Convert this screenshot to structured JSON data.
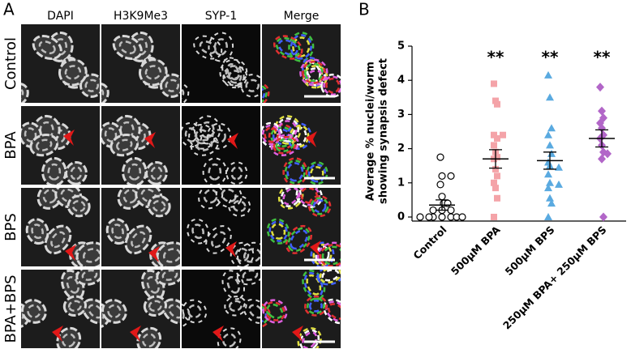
{
  "panel_a": {
    "label": "A",
    "columns": [
      "DAPI",
      "H3K9Me3",
      "SYP-1",
      "Merge"
    ],
    "rows": [
      "Control",
      "BPA",
      "BPS",
      "BPA+BPS"
    ]
  },
  "chart_data": {
    "type": "scatter",
    "label": "B",
    "ylabel_lines": [
      "Average % nuclei/worm",
      "showing synapsis defect"
    ],
    "categories": [
      "Control",
      "500µM BPA",
      "500µM BPS",
      "250µM BPA+ 250µM BPS"
    ],
    "annotations": [
      null,
      "**",
      "**",
      "**"
    ],
    "ylim": [
      0,
      5
    ],
    "yticks": [
      0,
      1,
      2,
      3,
      4,
      5
    ],
    "groups": [
      {
        "color": "#000000",
        "marker": "circle-open",
        "mean": 0.35,
        "sem": 0.15,
        "values": [
          1.75,
          1.2,
          1.2,
          0.95,
          0.6,
          0.4,
          0.4,
          0.2,
          0.2,
          0.2,
          0,
          0,
          0,
          0,
          0,
          0,
          0
        ]
      },
      {
        "color": "#f4a3a8",
        "marker": "square",
        "mean": 1.7,
        "sem": 0.27,
        "values": [
          3.9,
          3.4,
          3.3,
          2.4,
          2.4,
          2.3,
          2.1,
          1.9,
          1.75,
          1.7,
          1.4,
          1.2,
          1.0,
          0.85,
          0.55,
          0
        ]
      },
      {
        "color": "#5aaae0",
        "marker": "triangle",
        "mean": 1.65,
        "sem": 0.25,
        "values": [
          4.15,
          3.5,
          2.6,
          2.4,
          2.1,
          1.85,
          1.6,
          1.5,
          1.45,
          1.25,
          1.0,
          0.95,
          0.85,
          0.55,
          0.4,
          0
        ]
      },
      {
        "color": "#b266c8",
        "marker": "diamond",
        "mean": 2.3,
        "sem": 0.25,
        "values": [
          3.8,
          3.1,
          2.9,
          2.75,
          2.6,
          2.4,
          2.3,
          2.1,
          1.9,
          1.85,
          1.7,
          0
        ]
      }
    ]
  }
}
